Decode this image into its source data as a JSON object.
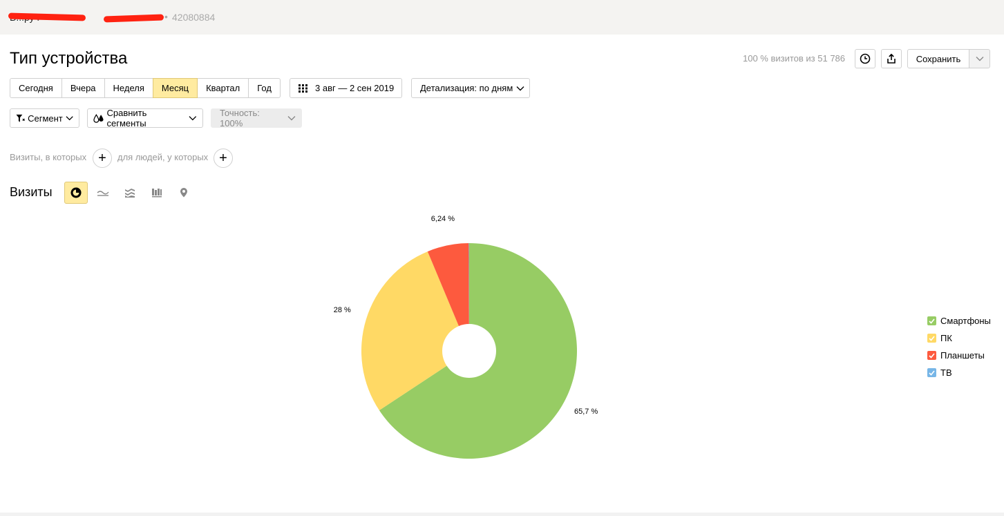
{
  "header": {
    "site_name": "В...ру",
    "counter_id": "42080884",
    "separator": "•"
  },
  "report": {
    "title": "Тип устройства",
    "visits_info": "100 % визитов из 51 786",
    "save_label": "Сохранить"
  },
  "periods": [
    {
      "label": "Сегодня",
      "active": false
    },
    {
      "label": "Вчера",
      "active": false
    },
    {
      "label": "Неделя",
      "active": false
    },
    {
      "label": "Месяц",
      "active": true
    },
    {
      "label": "Квартал",
      "active": false
    },
    {
      "label": "Год",
      "active": false
    }
  ],
  "date_range": "3 авг — 2 сен 2019",
  "detail": "Детализация: по дням",
  "segments": {
    "segment_label": "Сегмент",
    "compare_label": "Сравнить сегменты",
    "accuracy_label": "Точность: 100%"
  },
  "conditions": {
    "visits_label": "Визиты, в которых",
    "people_label": "для людей, у которых",
    "plus": "+"
  },
  "chart_section": {
    "heading": "Визиты",
    "types": [
      "pie-chart-icon",
      "line-chart-icon",
      "area-chart-icon",
      "bar-chart-icon",
      "map-icon"
    ]
  },
  "chart_data": {
    "type": "pie",
    "donut": true,
    "series": [
      {
        "name": "Смартфоны",
        "value": 65.7,
        "label": "65,7 %",
        "color": "#97cc64"
      },
      {
        "name": "ПК",
        "value": 28,
        "label": "28 %",
        "color": "#ffd965"
      },
      {
        "name": "Планшеты",
        "value": 6.24,
        "label": "6,24 %",
        "color": "#fd5a3e"
      },
      {
        "name": "ТВ",
        "value": 0.06,
        "label": "",
        "color": "#77b6e7"
      }
    ],
    "legend_position": "right"
  }
}
